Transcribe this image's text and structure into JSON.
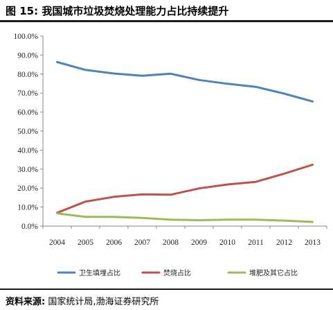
{
  "figure": {
    "title": "图 15:  我国城市垃圾焚烧处理能力占比持续提升",
    "source_label": "资料来源:",
    "source_text": "国家统计局,渤海证券研究所"
  },
  "chart_data": {
    "type": "line",
    "title": "",
    "xlabel": "",
    "ylabel": "",
    "x": [
      "2004",
      "2005",
      "2006",
      "2007",
      "2008",
      "2009",
      "2010",
      "2011",
      "2012",
      "2013"
    ],
    "ylim": [
      0,
      100
    ],
    "y_ticks": [
      "0.0%",
      "10.0%",
      "20.0%",
      "30.0%",
      "40.0%",
      "50.0%",
      "60.0%",
      "70.0%",
      "80.0%",
      "90.0%",
      "100.0%"
    ],
    "grid": false,
    "legend_position": "bottom",
    "series": [
      {
        "name": "卫生填埋占比",
        "color": "#4F81BD",
        "values": [
          86.3,
          82.2,
          80.3,
          79.1,
          80.2,
          76.9,
          74.9,
          73.3,
          69.7,
          65.6
        ]
      },
      {
        "name": "焚烧占比",
        "color": "#C0504D",
        "values": [
          7.0,
          12.9,
          15.4,
          16.7,
          16.5,
          19.8,
          21.9,
          23.3,
          27.6,
          32.3
        ]
      },
      {
        "name": "堆肥及其它占比",
        "color": "#9BBB59",
        "values": [
          6.7,
          4.8,
          4.8,
          4.3,
          3.4,
          3.1,
          3.4,
          3.4,
          2.9,
          2.2
        ]
      }
    ]
  }
}
